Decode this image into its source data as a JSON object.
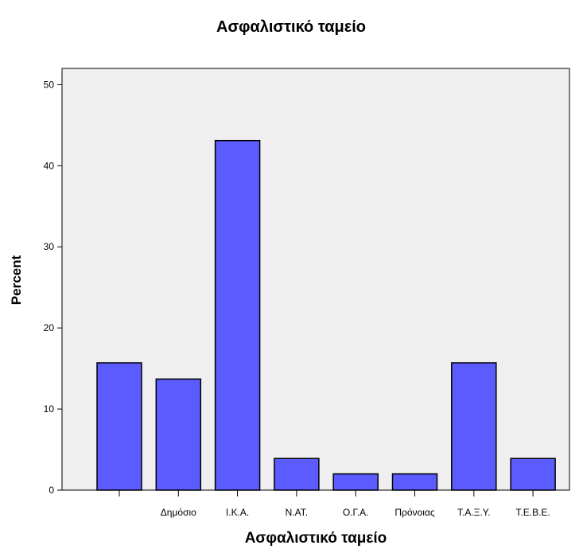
{
  "chart_data": {
    "type": "bar",
    "title": "Ασφαλιστικό ταμείο",
    "xlabel": "Ασφαλιστικό ταμείο",
    "ylabel": "Percent",
    "categories": [
      "",
      "Δημόσιο",
      "Ι.Κ.Α.",
      "Ν.ΑΤ.",
      "Ο.Γ.Α.",
      "Πρόνοιας",
      "Τ.Α.Ξ.Υ.",
      "Τ.Ε.Β.Ε."
    ],
    "values": [
      15.7,
      13.7,
      43.1,
      3.9,
      2.0,
      2.0,
      15.7,
      3.9
    ],
    "ylim": [
      0,
      52
    ],
    "yticks": [
      0,
      10,
      20,
      30,
      40,
      50
    ],
    "grid": false,
    "colors": {
      "bar": "#5b5bff",
      "bar_edge": "#000000",
      "plot_background": "#efefef"
    }
  }
}
